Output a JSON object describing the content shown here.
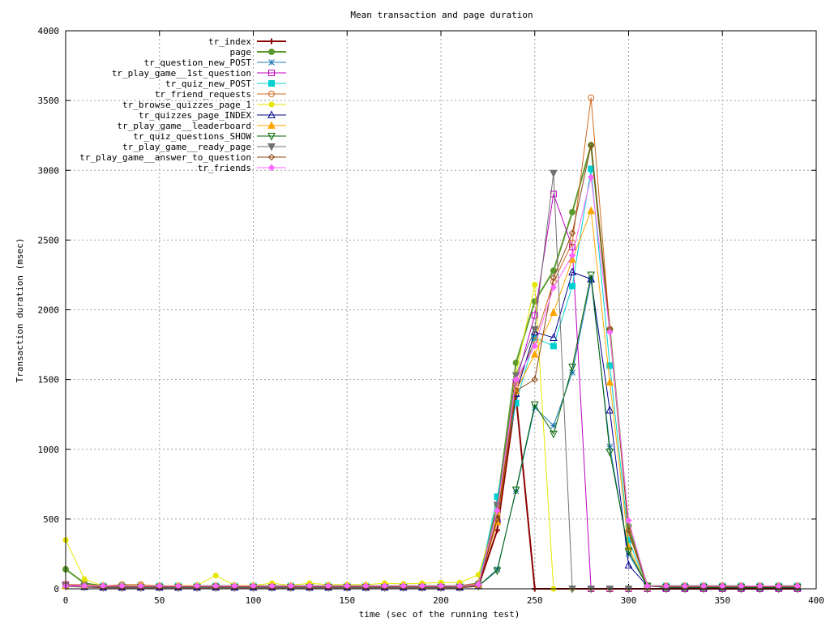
{
  "chart_data": {
    "type": "line",
    "title": "Mean transaction and page duration",
    "xlabel": "time (sec of the running test)",
    "ylabel": "Transaction duration (msec)",
    "xlim": [
      0,
      400
    ],
    "ylim": [
      0,
      4000
    ],
    "xticks": [
      "0",
      "50",
      "100",
      "150",
      "200",
      "250",
      "300",
      "350",
      "400"
    ],
    "yticks": [
      "0",
      "500",
      "1000",
      "1500",
      "2000",
      "2500",
      "3000",
      "3500",
      "4000"
    ],
    "grid": true,
    "legend_position": "top-left",
    "x": [
      0,
      10,
      20,
      30,
      40,
      50,
      60,
      70,
      80,
      90,
      100,
      110,
      120,
      130,
      140,
      150,
      160,
      170,
      180,
      190,
      200,
      210,
      220,
      230,
      240,
      250,
      260,
      270,
      280,
      290,
      300,
      310,
      320,
      330,
      340,
      350,
      360,
      370,
      380,
      390
    ],
    "series": [
      {
        "name": "tr_index",
        "color": "#8b0000",
        "marker": "plus",
        "width": 2,
        "values": [
          20,
          15,
          10,
          10,
          10,
          10,
          10,
          10,
          10,
          10,
          10,
          10,
          10,
          10,
          10,
          10,
          10,
          10,
          10,
          10,
          10,
          10,
          20,
          420,
          1380,
          0,
          0,
          0,
          0,
          0,
          0,
          0,
          0,
          0,
          0,
          0,
          0,
          0,
          0,
          0
        ]
      },
      {
        "name": "page",
        "color": "#5c9a2e",
        "marker": "hex",
        "width": 2,
        "values": [
          140,
          40,
          20,
          20,
          25,
          20,
          20,
          20,
          20,
          20,
          20,
          20,
          20,
          20,
          20,
          20,
          20,
          20,
          20,
          20,
          20,
          20,
          40,
          600,
          1620,
          2060,
          2280,
          2700,
          3180,
          1860,
          450,
          20,
          20,
          20,
          20,
          20,
          20,
          10,
          20,
          20
        ]
      },
      {
        "name": "tr_question_new_POST",
        "color": "#1f77b4",
        "marker": "star",
        "width": 1,
        "values": [
          20,
          15,
          10,
          10,
          10,
          10,
          10,
          10,
          10,
          10,
          10,
          10,
          10,
          10,
          10,
          10,
          10,
          10,
          10,
          10,
          10,
          10,
          20,
          140,
          700,
          1300,
          1170,
          1550,
          2220,
          1020,
          250,
          20,
          10,
          10,
          10,
          10,
          10,
          10,
          10,
          10
        ]
      },
      {
        "name": "tr_play_game__1st_question",
        "color": "#c000c0",
        "marker": "square-open",
        "width": 1,
        "values": [
          30,
          20,
          15,
          15,
          15,
          15,
          15,
          15,
          15,
          15,
          15,
          15,
          15,
          15,
          15,
          15,
          15,
          15,
          15,
          15,
          15,
          15,
          30,
          480,
          1480,
          1960,
          2830,
          2450,
          0,
          0,
          0,
          0,
          0,
          0,
          0,
          0,
          0,
          0,
          0,
          0
        ]
      },
      {
        "name": "tr_quiz_new_POST",
        "color": "#00d0d0",
        "marker": "square",
        "width": 1,
        "values": [
          20,
          20,
          20,
          20,
          20,
          20,
          20,
          20,
          20,
          20,
          20,
          20,
          20,
          20,
          20,
          20,
          20,
          20,
          20,
          20,
          20,
          20,
          30,
          660,
          1330,
          1800,
          1740,
          2170,
          3010,
          1600,
          350,
          20,
          20,
          20,
          20,
          20,
          20,
          20,
          20,
          20
        ]
      },
      {
        "name": "tr_friend_requests",
        "color": "#d2691e",
        "marker": "circle-open",
        "width": 1,
        "values": [
          30,
          30,
          20,
          30,
          30,
          20,
          20,
          20,
          20,
          20,
          20,
          20,
          20,
          20,
          20,
          20,
          20,
          20,
          20,
          20,
          20,
          20,
          40,
          520,
          1460,
          1780,
          2200,
          2480,
          3520,
          1860,
          400,
          20,
          20,
          20,
          20,
          20,
          20,
          20,
          20,
          20
        ]
      },
      {
        "name": "tr_browse_quizzes_page_1",
        "color": "#e6e600",
        "marker": "circle",
        "width": 1,
        "values": [
          350,
          70,
          20,
          20,
          25,
          20,
          25,
          25,
          95,
          25,
          25,
          40,
          25,
          40,
          30,
          30,
          30,
          40,
          35,
          40,
          45,
          45,
          100,
          540,
          1540,
          2180,
          0,
          0,
          0,
          0,
          0,
          0,
          0,
          0,
          0,
          0,
          0,
          0,
          0,
          0
        ]
      },
      {
        "name": "tr_quizzes_page_INDEX",
        "color": "#00008b",
        "marker": "triangle-open",
        "width": 1,
        "values": [
          20,
          15,
          10,
          10,
          10,
          10,
          10,
          10,
          10,
          10,
          10,
          10,
          10,
          10,
          10,
          10,
          10,
          10,
          10,
          10,
          10,
          10,
          20,
          500,
          1400,
          1840,
          1800,
          2270,
          2220,
          1280,
          170,
          20,
          10,
          10,
          10,
          10,
          10,
          10,
          10,
          10
        ]
      },
      {
        "name": "tr_play_game__leaderboard",
        "color": "#ffa500",
        "marker": "triangle",
        "width": 1,
        "values": [
          20,
          20,
          20,
          20,
          20,
          20,
          20,
          20,
          20,
          20,
          20,
          20,
          20,
          20,
          20,
          20,
          20,
          20,
          20,
          20,
          20,
          20,
          30,
          480,
          1420,
          1680,
          1980,
          2360,
          2710,
          1480,
          300,
          20,
          20,
          20,
          20,
          20,
          20,
          20,
          20,
          20
        ]
      },
      {
        "name": "tr_quiz_questions_SHOW",
        "color": "#006400",
        "marker": "triangle-down-open",
        "width": 1,
        "values": [
          20,
          15,
          10,
          10,
          10,
          10,
          10,
          10,
          10,
          10,
          10,
          10,
          10,
          10,
          10,
          10,
          10,
          10,
          10,
          10,
          10,
          10,
          20,
          130,
          710,
          1320,
          1110,
          1590,
          2250,
          980,
          270,
          20,
          10,
          10,
          10,
          10,
          10,
          10,
          10,
          10
        ]
      },
      {
        "name": "tr_play_game__ready_page",
        "color": "#707070",
        "marker": "triangle-down",
        "width": 1,
        "values": [
          20,
          15,
          10,
          10,
          10,
          10,
          10,
          10,
          10,
          10,
          10,
          10,
          10,
          10,
          10,
          10,
          10,
          10,
          10,
          10,
          10,
          10,
          20,
          600,
          1530,
          1860,
          2980,
          0,
          0,
          0,
          0,
          0,
          0,
          0,
          0,
          0,
          0,
          0,
          0,
          0
        ]
      },
      {
        "name": "tr_play_game__answer_to_question",
        "color": "#8b4513",
        "marker": "diamond-open",
        "width": 1,
        "values": [
          20,
          20,
          15,
          15,
          15,
          15,
          15,
          15,
          15,
          15,
          15,
          15,
          15,
          15,
          15,
          15,
          15,
          15,
          15,
          15,
          15,
          15,
          25,
          500,
          1420,
          1500,
          2230,
          2550,
          3180,
          1860,
          420,
          20,
          15,
          15,
          15,
          15,
          15,
          15,
          15,
          15
        ]
      },
      {
        "name": "tr_friends",
        "color": "#ff66ff",
        "marker": "diamond",
        "width": 1,
        "values": [
          20,
          20,
          20,
          20,
          20,
          20,
          20,
          20,
          20,
          20,
          20,
          20,
          20,
          20,
          20,
          20,
          20,
          20,
          20,
          20,
          20,
          20,
          30,
          560,
          1500,
          1740,
          2160,
          2390,
          2950,
          1840,
          490,
          20,
          20,
          20,
          20,
          20,
          20,
          20,
          20,
          20
        ]
      }
    ]
  }
}
